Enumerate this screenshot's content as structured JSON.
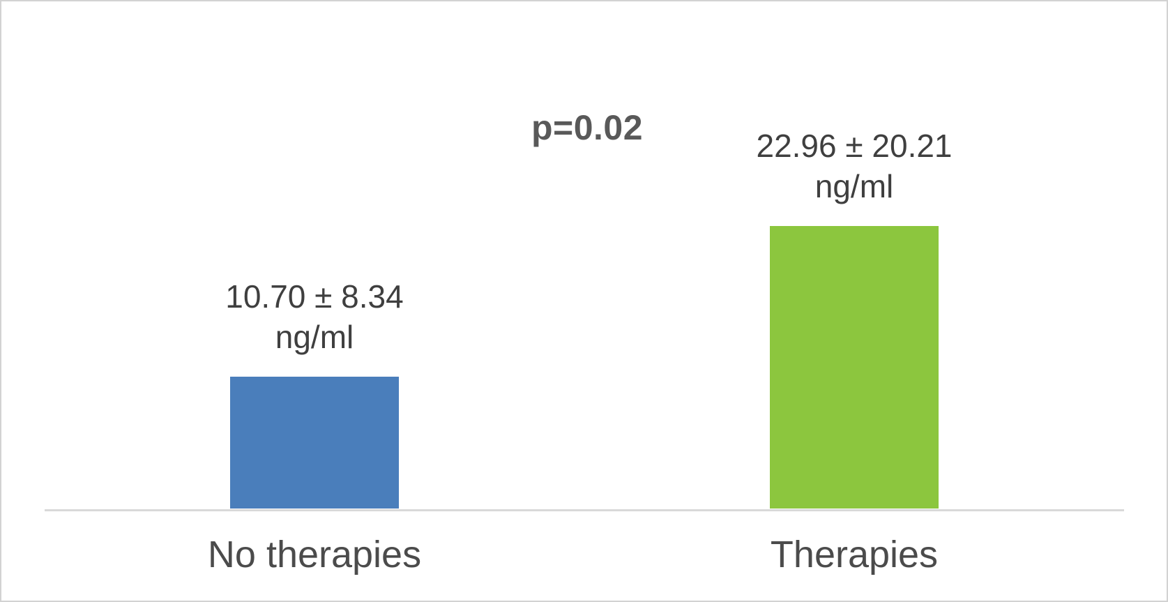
{
  "chart_data": {
    "type": "bar",
    "categories": [
      "No therapies",
      "Therapies"
    ],
    "values": [
      10.7,
      22.96
    ],
    "std_devs": [
      8.34,
      20.21
    ],
    "data_labels": [
      "10.70 ± 8.34",
      "22.96 ± 20.21"
    ],
    "unit": "ng/ml",
    "annotation": "p=0.02",
    "bar_colors": [
      "#4A7EBB",
      "#8CC63E"
    ],
    "ylim": [
      0,
      25
    ],
    "grid": false,
    "legend": false,
    "axis_line_color": "#d9d9d9",
    "annotation_color": "#595959",
    "label_color": "#3f3f3f"
  }
}
